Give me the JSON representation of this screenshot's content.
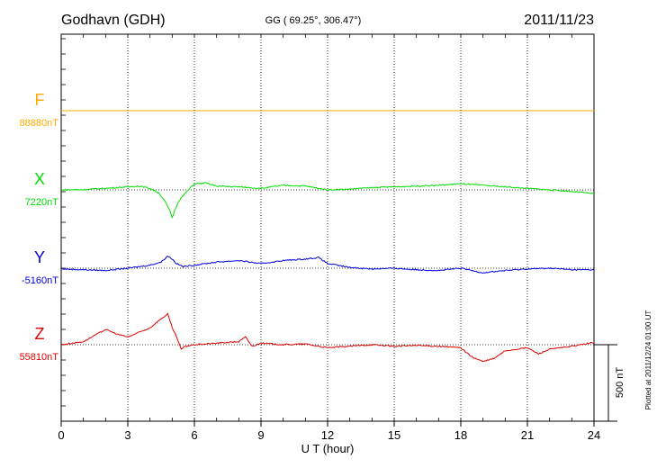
{
  "header": {
    "station": "Godhavn (GDH)",
    "coords": "GG ( 69.25°, 306.47°)",
    "date": "2011/11/23"
  },
  "footer": {
    "plotted": "Plotted at 2011/12/24 01:00 UT"
  },
  "chart_data": {
    "type": "line",
    "xlabel": "U T (hour)",
    "xlim": [
      0,
      24
    ],
    "xticks": [
      "0",
      "3",
      "6",
      "9",
      "12",
      "15",
      "18",
      "21",
      "24"
    ],
    "scale_bar": {
      "label": "500 nT",
      "value": 500
    },
    "grid": "vertical dotted every 3 hours",
    "series": [
      {
        "name": "F",
        "baseline_label": "88880nT",
        "baseline": 88880,
        "color": "#ffaa00",
        "x": [
          0,
          6,
          12,
          18,
          24
        ],
        "y": [
          88880,
          88880,
          88880,
          88880,
          88880
        ]
      },
      {
        "name": "X",
        "baseline_label": "7220nT",
        "baseline": 7220,
        "color": "#00dd00",
        "x": [
          0,
          1,
          2,
          3,
          3.5,
          4,
          4.4,
          4.7,
          4.9,
          5.0,
          5.1,
          5.3,
          5.6,
          6.0,
          6.5,
          7,
          8,
          9,
          10,
          11,
          12,
          13,
          14,
          15,
          16,
          17,
          18,
          19,
          20,
          21,
          22,
          23,
          24
        ],
        "y": [
          7220,
          7222,
          7230,
          7240,
          7245,
          7230,
          7200,
          7140,
          7080,
          7040,
          7080,
          7150,
          7200,
          7260,
          7265,
          7245,
          7240,
          7230,
          7250,
          7245,
          7220,
          7225,
          7235,
          7240,
          7245,
          7250,
          7260,
          7250,
          7240,
          7230,
          7220,
          7210,
          7195
        ]
      },
      {
        "name": "Y",
        "baseline_label": "-5160nT",
        "baseline": -5160,
        "color": "#0000dd",
        "x": [
          0,
          1,
          2,
          3,
          3.5,
          4,
          4.5,
          4.8,
          5.0,
          5.2,
          5.5,
          6,
          7,
          8,
          9,
          10,
          11,
          11.6,
          12,
          13,
          14,
          15,
          16,
          17,
          18,
          19,
          20,
          21,
          22,
          23,
          24
        ],
        "y": [
          -5165,
          -5170,
          -5175,
          -5160,
          -5150,
          -5140,
          -5120,
          -5080,
          -5100,
          -5130,
          -5150,
          -5140,
          -5120,
          -5110,
          -5130,
          -5110,
          -5100,
          -5090,
          -5130,
          -5155,
          -5165,
          -5160,
          -5170,
          -5175,
          -5160,
          -5190,
          -5175,
          -5165,
          -5160,
          -5170,
          -5170
        ]
      },
      {
        "name": "Z",
        "baseline_label": "55810nT",
        "baseline": 55810,
        "color": "#dd0000",
        "x": [
          0,
          1,
          1.5,
          2,
          2.5,
          3,
          3.5,
          4,
          4.5,
          4.8,
          5.0,
          5.2,
          5.4,
          5.6,
          6,
          7,
          8,
          8.3,
          8.6,
          9,
          10,
          11,
          12,
          13,
          14,
          15,
          16,
          17,
          18,
          18.5,
          19,
          19.5,
          20,
          21,
          21.5,
          22,
          23,
          24
        ],
        "y": [
          55810,
          55830,
          55870,
          55910,
          55880,
          55860,
          55890,
          55920,
          55980,
          56010,
          55920,
          55860,
          55780,
          55800,
          55810,
          55820,
          55830,
          55860,
          55800,
          55820,
          55810,
          55815,
          55790,
          55800,
          55810,
          55800,
          55805,
          55800,
          55790,
          55730,
          55700,
          55720,
          55770,
          55790,
          55750,
          55780,
          55800,
          55825
        ]
      }
    ]
  }
}
